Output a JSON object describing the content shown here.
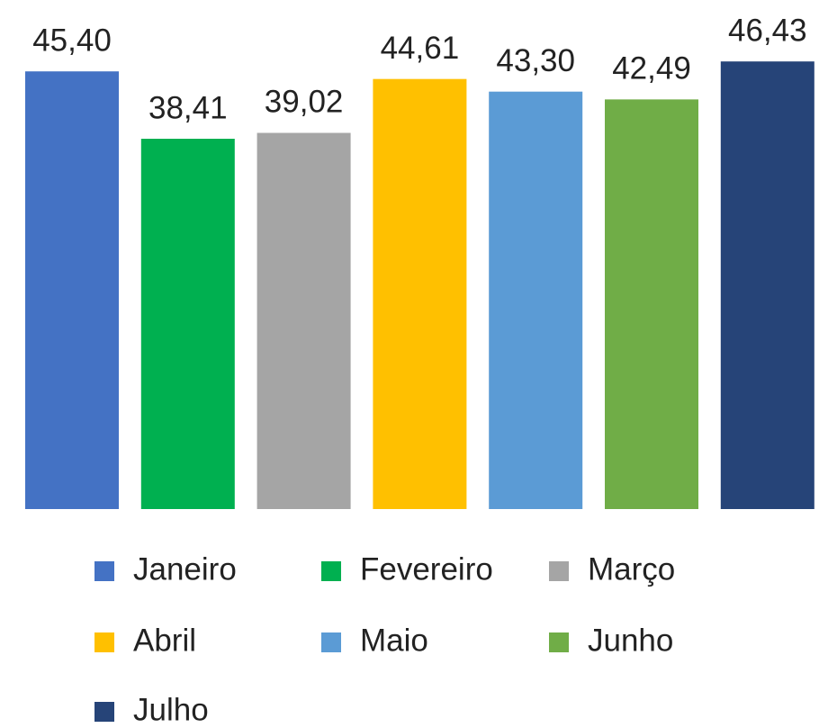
{
  "chart_data": {
    "type": "bar",
    "series": [
      {
        "name": "Janeiro",
        "color": "#4472c4",
        "values": [
          45.4
        ],
        "value_labels": [
          "45,40"
        ]
      },
      {
        "name": "Fevereiro",
        "color": "#00b050",
        "values": [
          38.41
        ],
        "value_labels": [
          "38,41"
        ]
      },
      {
        "name": "Março",
        "color": "#a5a5a5",
        "values": [
          39.02
        ],
        "value_labels": [
          "39,02"
        ]
      },
      {
        "name": "Abril",
        "color": "#ffc000",
        "values": [
          44.61
        ],
        "value_labels": [
          "44,61"
        ]
      },
      {
        "name": "Maio",
        "color": "#5b9bd5",
        "values": [
          43.3
        ],
        "value_labels": [
          "43,30"
        ]
      },
      {
        "name": "Junho",
        "color": "#70ad47",
        "values": [
          42.49
        ],
        "value_labels": [
          "42,49"
        ]
      },
      {
        "name": "Julho",
        "color": "#264478",
        "values": [
          46.43
        ],
        "value_labels": [
          "46,43"
        ]
      }
    ]
  }
}
